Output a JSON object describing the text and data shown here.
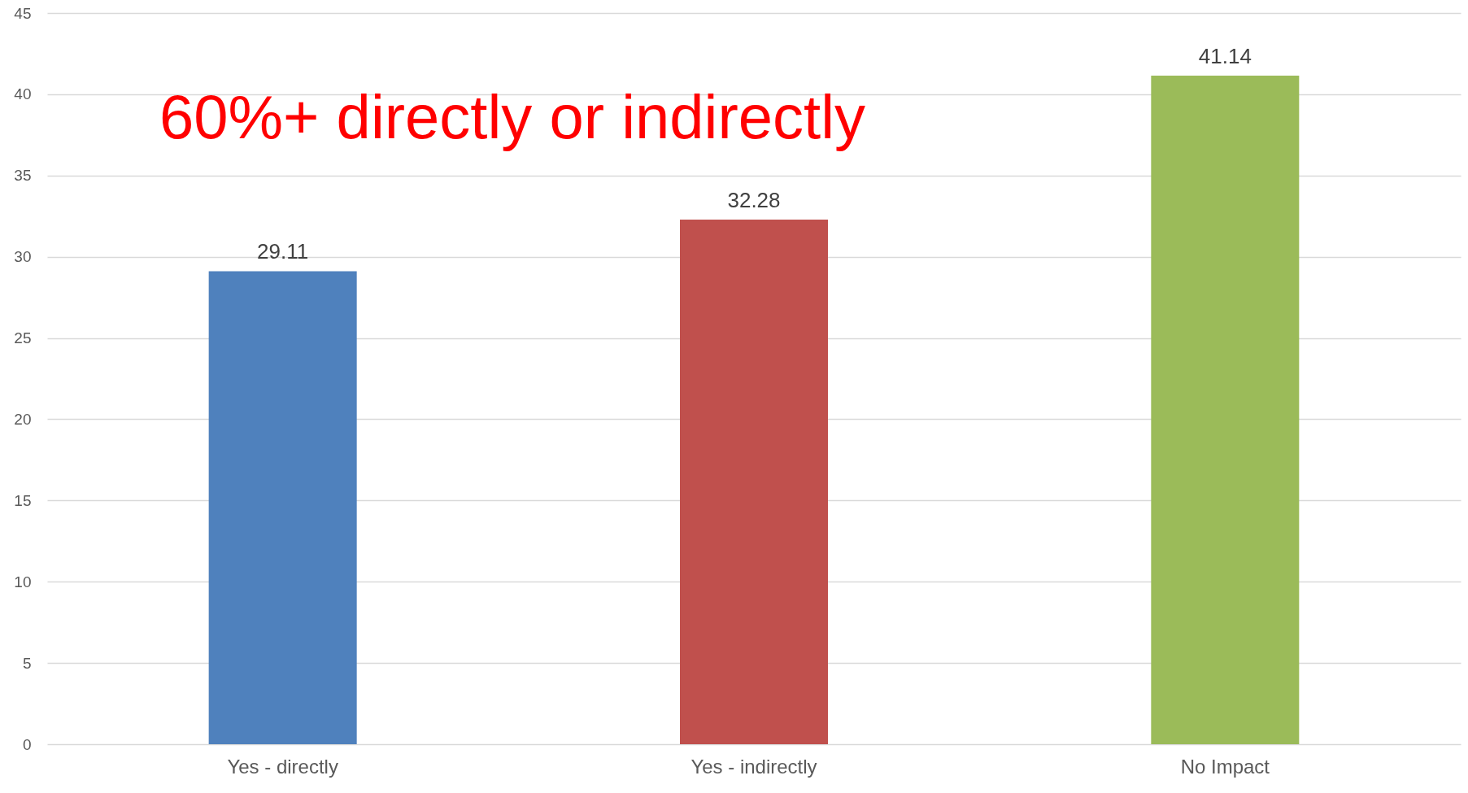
{
  "chart_data": {
    "type": "bar",
    "categories": [
      "Yes - directly",
      "Yes - indirectly",
      "No Impact"
    ],
    "values": [
      29.11,
      32.28,
      41.14
    ],
    "colors": [
      "#4f81bd",
      "#c0504d",
      "#9bbb59"
    ],
    "ylim": [
      0,
      45
    ],
    "yticks": [
      0,
      5,
      10,
      15,
      20,
      25,
      30,
      35,
      40,
      45
    ],
    "grid": "y",
    "data_labels": true,
    "annotations": [
      "60%+ directly or indirectly"
    ]
  }
}
